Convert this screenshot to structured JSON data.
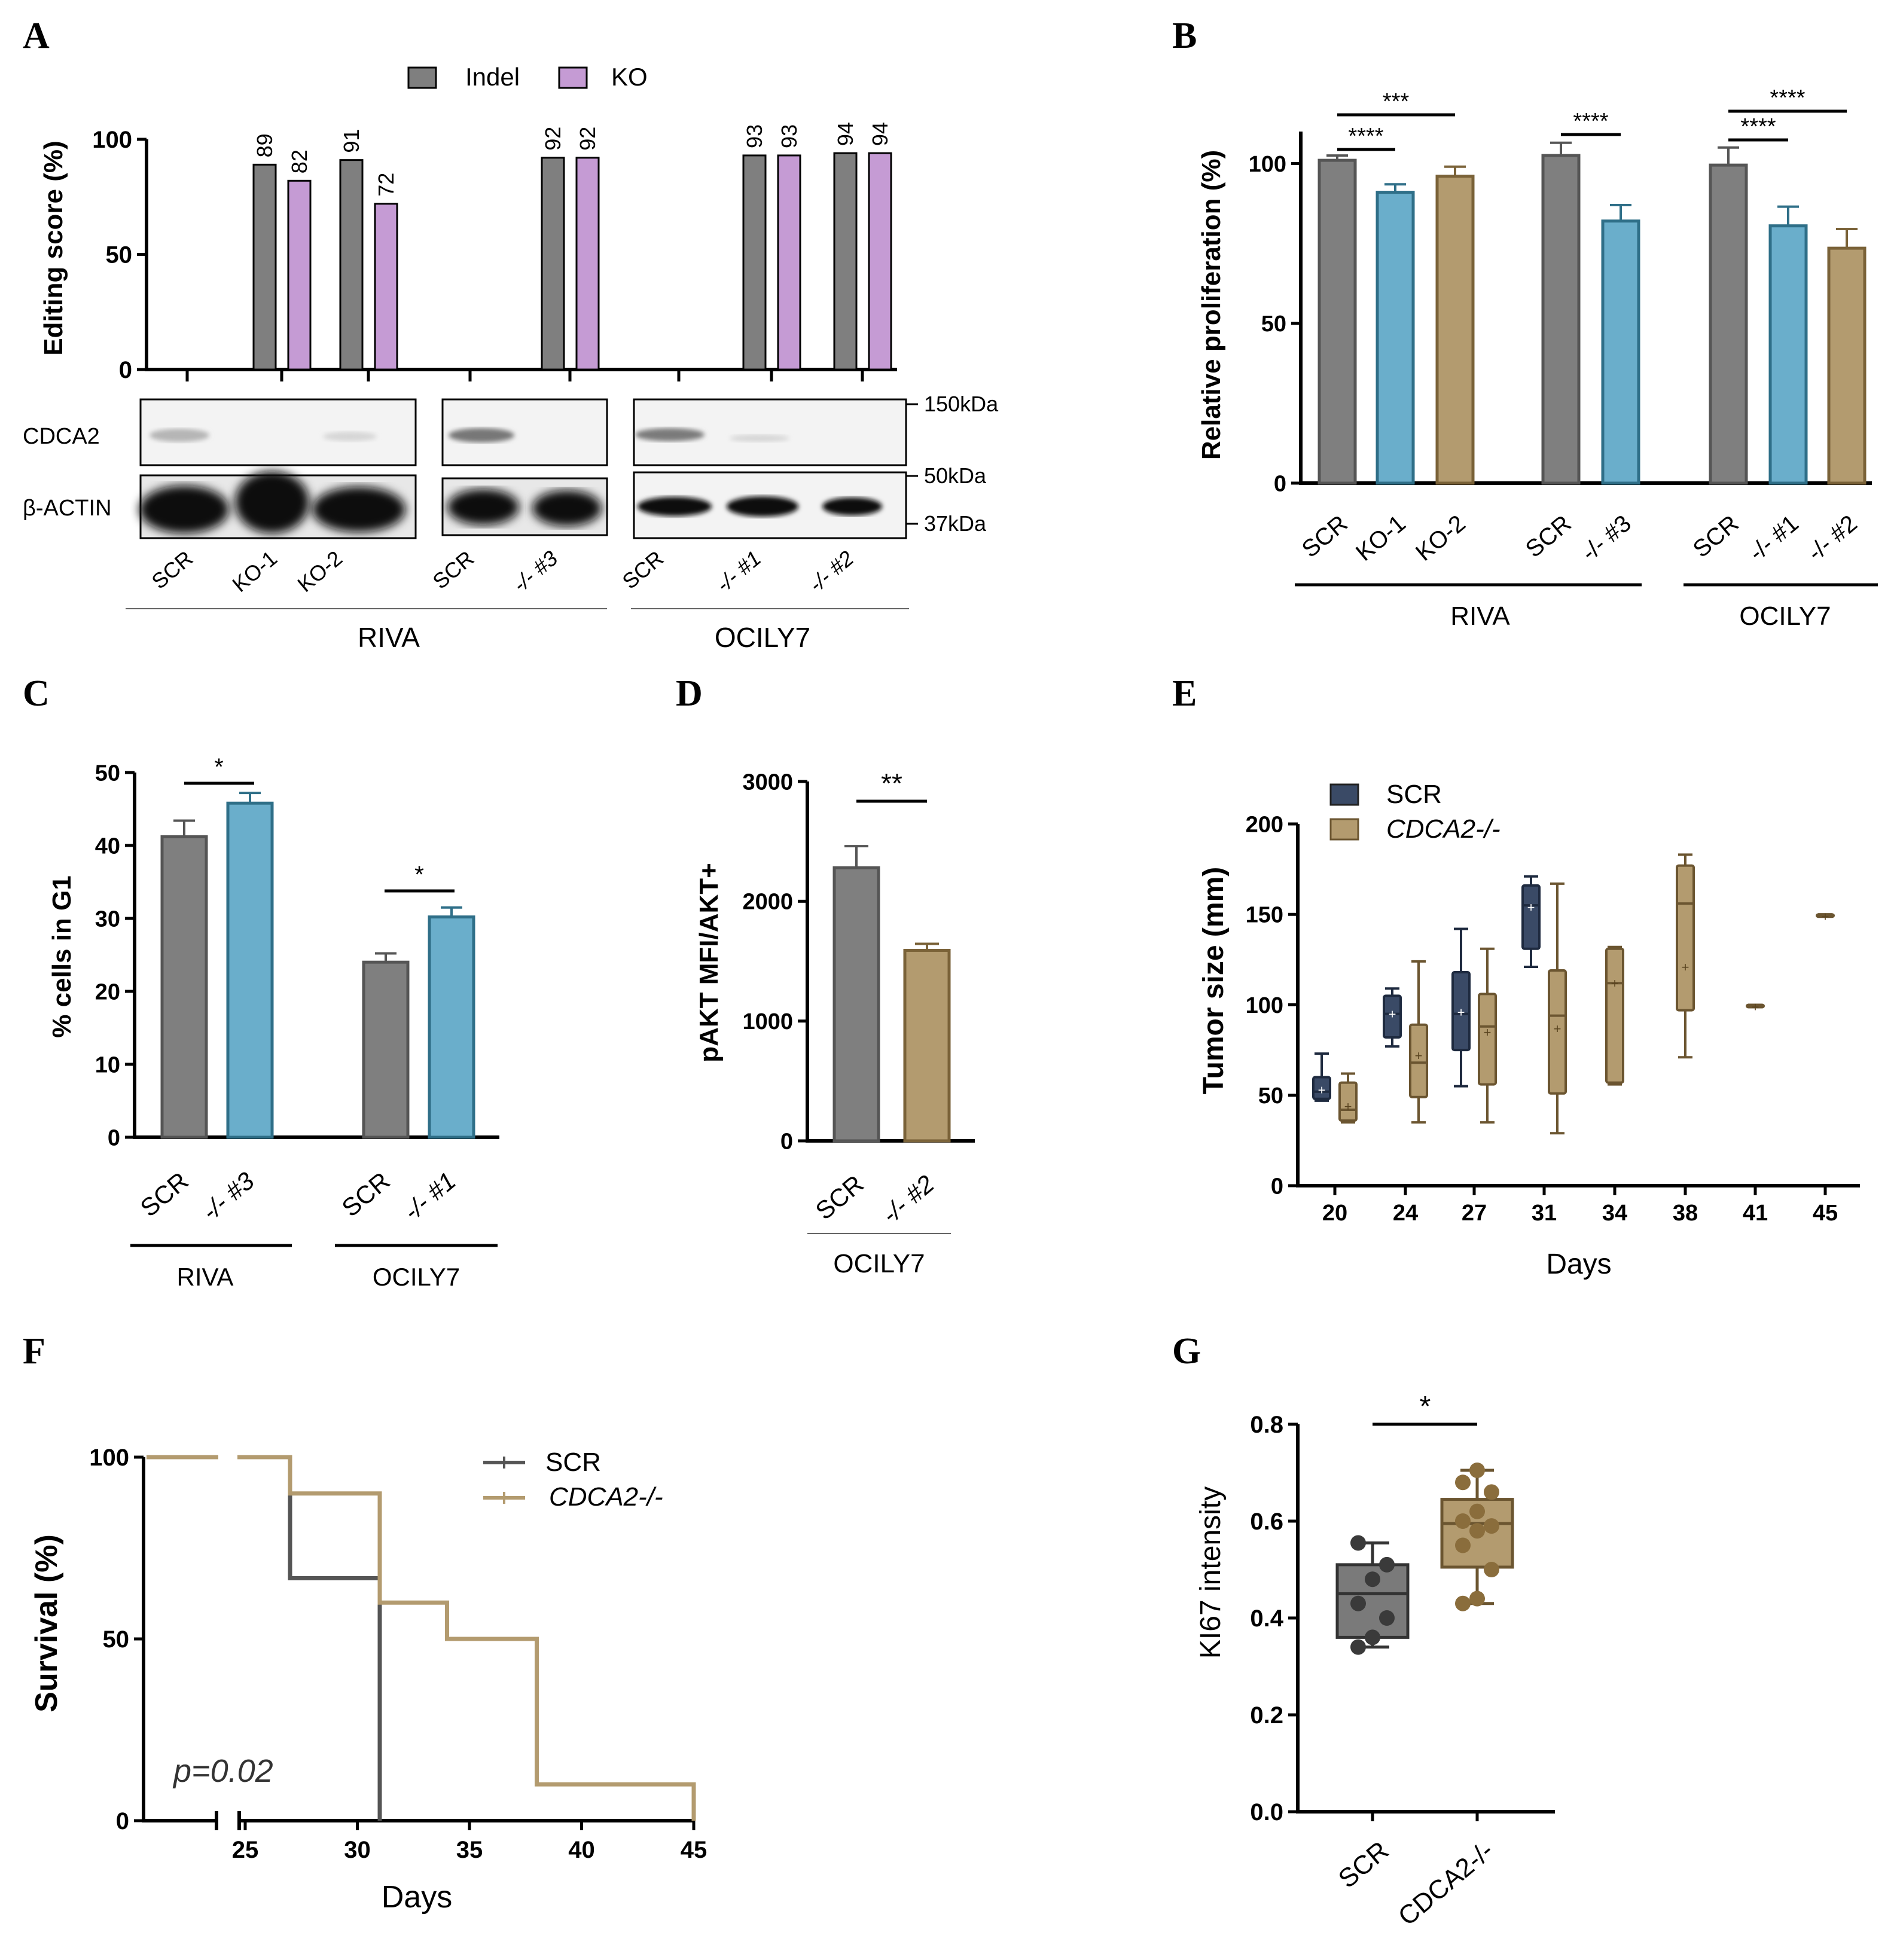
{
  "colors": {
    "grey": "#7f7f7f",
    "purple": "#c59bd4",
    "blue": "#6aaecb",
    "tan": "#b39b6f",
    "navy": "#3a4a66",
    "tan_dark": "#8a6d3c",
    "blot_bg": "#f2f2f2",
    "black": "#000000"
  },
  "panels": {
    "A": {
      "letter": "A",
      "legend": [
        "Indel",
        "KO"
      ],
      "ylabel": "Editing score (%)",
      "blot_rows": [
        "CDCA2",
        "β-ACTIN"
      ],
      "markers": [
        "150kDa",
        "50kDa",
        "37kDa"
      ],
      "lanes": [
        "SCR",
        "KO-1",
        "KO-2",
        "SCR",
        "-/- #3",
        "SCR",
        "-/- #1",
        "-/- #2"
      ],
      "groups": [
        "RIVA",
        "OCILY7"
      ]
    },
    "B": {
      "letter": "B",
      "ylabel": "Relative proliferation (%)",
      "groups": [
        "RIVA",
        "OCILY7"
      ],
      "stars": [
        "****",
        "***",
        "****",
        "****",
        "****"
      ]
    },
    "C": {
      "letter": "C",
      "ylabel": "% cells in G1",
      "groups": [
        "RIVA",
        "OCILY7"
      ],
      "stars": [
        "*",
        "*"
      ]
    },
    "D": {
      "letter": "D",
      "ylabel": "pAKT MFI/AKT+",
      "group": "OCILY7",
      "stars": [
        "**"
      ]
    },
    "E": {
      "letter": "E",
      "ylabel": "Tumor size (mm)",
      "xlabel": "Days",
      "legend": [
        "SCR",
        "CDCA2-/-"
      ]
    },
    "F": {
      "letter": "F",
      "ylabel": "Survival (%)",
      "xlabel": "Days",
      "legend": [
        "SCR",
        "CDCA2-/-"
      ],
      "pvalue": "p=0.02"
    },
    "G": {
      "letter": "G",
      "ylabel": "KI67 intensity",
      "stars": [
        "*"
      ]
    }
  },
  "chart_data": [
    {
      "panel": "A",
      "type": "bar",
      "categories": [
        "SCR",
        "KO-1",
        "KO-2",
        "SCR",
        "-/- #3",
        "SCR",
        "-/- #1",
        "-/- #2"
      ],
      "series": [
        {
          "name": "Indel",
          "values": [
            null,
            89,
            91,
            null,
            92,
            null,
            93,
            94
          ]
        },
        {
          "name": "KO",
          "values": [
            null,
            82,
            72,
            null,
            92,
            null,
            93,
            94
          ]
        }
      ],
      "ylim": [
        0,
        100
      ],
      "yticks": [
        0,
        50,
        100
      ]
    },
    {
      "panel": "B",
      "type": "bar",
      "categories": [
        "SCR",
        "KO-1",
        "KO-2",
        "SCR",
        "-/- #3",
        "SCR",
        "-/- #1",
        "-/- #2"
      ],
      "values": [
        101,
        91,
        96,
        102.5,
        82,
        99.5,
        80.5,
        73.5
      ],
      "errors": [
        1.5,
        2.5,
        3,
        4,
        5,
        5.5,
        6,
        6
      ],
      "ylim": [
        0,
        110
      ],
      "yticks": [
        0,
        50,
        100
      ]
    },
    {
      "panel": "C",
      "type": "bar",
      "categories": [
        "SCR",
        "-/- #3",
        "SCR",
        "-/- #1"
      ],
      "values": [
        41.2,
        45.8,
        24,
        30.2
      ],
      "errors": [
        2.2,
        1.4,
        1.2,
        1.3
      ],
      "ylim": [
        0,
        50
      ],
      "yticks": [
        0,
        10,
        20,
        30,
        40,
        50
      ]
    },
    {
      "panel": "D",
      "type": "bar",
      "categories": [
        "SCR",
        "-/- #2"
      ],
      "values": [
        2280,
        1590
      ],
      "errors": [
        180,
        55
      ],
      "ylim": [
        0,
        3000
      ],
      "yticks": [
        0,
        1000,
        2000,
        3000
      ]
    },
    {
      "panel": "E",
      "type": "box",
      "categories": [
        "20",
        "24",
        "27",
        "31",
        "34",
        "38",
        "41",
        "45"
      ],
      "series": [
        {
          "name": "SCR",
          "boxes": [
            {
              "day": "20",
              "min": 47,
              "q1": 48,
              "median": 52,
              "q3": 60,
              "max": 73,
              "mean": 53
            },
            {
              "day": "24",
              "min": 77,
              "q1": 82,
              "median": 95,
              "q3": 105,
              "max": 109,
              "mean": 95
            },
            {
              "day": "27",
              "min": 55,
              "q1": 75,
              "median": 95,
              "q3": 118,
              "max": 142,
              "mean": 96
            },
            {
              "day": "31",
              "min": 121,
              "q1": 131,
              "median": 155,
              "q3": 166,
              "max": 171,
              "mean": 154
            }
          ]
        },
        {
          "name": "CDCA2-/-",
          "boxes": [
            {
              "day": "20",
              "min": 35,
              "q1": 36,
              "median": 42,
              "q3": 57,
              "max": 62,
              "mean": 44
            },
            {
              "day": "24",
              "min": 35,
              "q1": 49,
              "median": 68,
              "q3": 89,
              "max": 124,
              "mean": 72
            },
            {
              "day": "27",
              "min": 35,
              "q1": 56,
              "median": 88,
              "q3": 106,
              "max": 131,
              "mean": 85
            },
            {
              "day": "31",
              "min": 29,
              "q1": 51,
              "median": 94,
              "q3": 119,
              "max": 167,
              "mean": 87
            },
            {
              "day": "34",
              "min": 56,
              "q1": 57,
              "median": 112,
              "q3": 131,
              "max": 132,
              "mean": 112
            },
            {
              "day": "38",
              "min": 71,
              "q1": 97,
              "median": 156,
              "q3": 177,
              "max": 183,
              "mean": 121
            },
            {
              "day": "41",
              "min": 99,
              "q1": 99,
              "median": 99,
              "q3": 100,
              "max": 100,
              "mean": 99
            },
            {
              "day": "45",
              "min": 149,
              "q1": 149,
              "median": 149,
              "q3": 150,
              "max": 150,
              "mean": 149
            }
          ]
        }
      ],
      "ylim": [
        0,
        220
      ],
      "yticks": [
        0,
        50,
        100,
        150,
        200
      ]
    },
    {
      "panel": "F",
      "type": "line",
      "series": [
        {
          "name": "SCR",
          "x": [
            0,
            27,
            31
          ],
          "y": [
            100,
            66.7,
            0
          ]
        },
        {
          "name": "CDCA2-/-",
          "x": [
            0,
            27,
            31,
            34,
            38,
            45
          ],
          "y": [
            100,
            90,
            60,
            50,
            10,
            0
          ]
        }
      ],
      "xticks": [
        25,
        30,
        35,
        40,
        45
      ],
      "yticks": [
        0,
        50,
        100
      ],
      "ylim": [
        0,
        100
      ]
    },
    {
      "panel": "G",
      "type": "box",
      "categories": [
        "SCR",
        "CDCA2-/-"
      ],
      "boxes": [
        {
          "min": 0.34,
          "q1": 0.36,
          "median": 0.45,
          "q3": 0.51,
          "max": 0.555,
          "points": [
            0.34,
            0.36,
            0.4,
            0.43,
            0.48,
            0.51,
            0.555
          ]
        },
        {
          "min": 0.43,
          "q1": 0.505,
          "median": 0.595,
          "q3": 0.645,
          "max": 0.705,
          "points": [
            0.43,
            0.44,
            0.5,
            0.55,
            0.58,
            0.59,
            0.6,
            0.62,
            0.66,
            0.68,
            0.705
          ]
        }
      ],
      "ylim": [
        0,
        0.8
      ],
      "yticks": [
        "0.0",
        "0.2",
        "0.4",
        "0.6",
        "0.8"
      ]
    }
  ]
}
